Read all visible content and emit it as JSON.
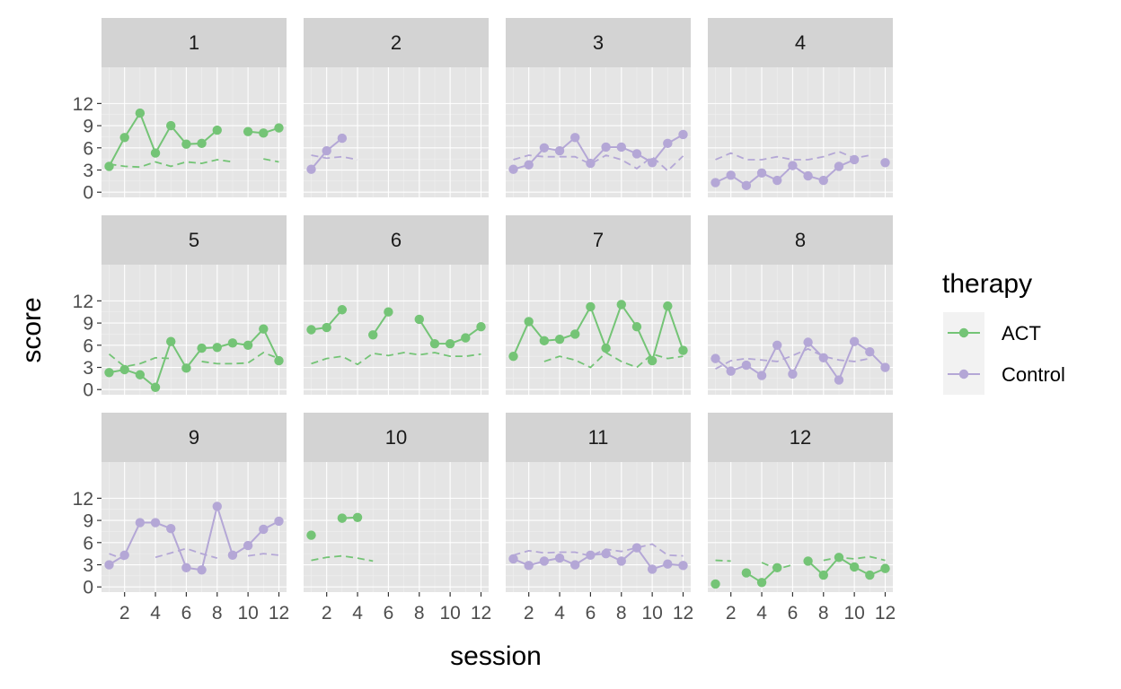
{
  "chart_data": {
    "type": "line",
    "facet_by": "participant",
    "xlabel": "session",
    "ylabel": "score",
    "legend": {
      "title": "therapy",
      "position": "right",
      "entries": [
        {
          "name": "ACT",
          "color": "#74c476"
        },
        {
          "name": "Control",
          "color": "#b4a7d6"
        }
      ]
    },
    "x_range": [
      1,
      12
    ],
    "x_ticks": [
      2,
      4,
      6,
      8,
      10,
      12
    ],
    "x_tick_labels": [
      "2",
      "4",
      "6",
      "8",
      "10",
      "12"
    ],
    "y_range": [
      0,
      12
    ],
    "y_ticks": [
      0,
      3,
      6,
      9,
      12
    ],
    "y_tick_labels": [
      "0",
      "3",
      "6",
      "9",
      "12"
    ],
    "grid": true,
    "series_styles": {
      "score": "solid line with points",
      "reference": "dashed line"
    },
    "facets": [
      {
        "label": "1",
        "therapy": "ACT",
        "score": [
          3.5,
          7.4,
          10.7,
          5.3,
          9.0,
          6.5,
          6.6,
          8.4,
          null,
          8.2,
          8.0,
          8.7
        ],
        "reference": [
          3.8,
          3.5,
          3.4,
          4.1,
          3.5,
          4.1,
          3.9,
          4.4,
          4.1,
          null,
          4.5,
          4.1
        ]
      },
      {
        "label": "2",
        "therapy": "Control",
        "score": [
          3.1,
          5.6,
          7.3,
          null,
          null,
          null,
          null,
          null,
          null,
          null,
          null,
          null
        ],
        "reference": [
          5.0,
          4.6,
          4.8,
          4.4,
          null,
          null,
          null,
          null,
          null,
          null,
          null,
          null
        ]
      },
      {
        "label": "3",
        "therapy": "Control",
        "score": [
          3.1,
          3.7,
          6.0,
          5.6,
          7.4,
          3.9,
          6.1,
          6.1,
          5.2,
          4.0,
          6.6,
          7.8
        ],
        "reference": [
          4.4,
          5.0,
          4.8,
          4.8,
          4.8,
          3.8,
          5.0,
          4.4,
          3.2,
          4.8,
          2.9,
          4.9
        ]
      },
      {
        "label": "4",
        "therapy": "Control",
        "score": [
          1.3,
          2.3,
          0.9,
          2.6,
          1.6,
          3.6,
          2.2,
          1.6,
          3.5,
          4.4,
          null,
          4.0
        ],
        "reference": [
          4.4,
          5.3,
          4.4,
          4.4,
          4.8,
          4.4,
          4.4,
          4.8,
          5.5,
          4.6,
          5.0,
          null
        ]
      },
      {
        "label": "5",
        "therapy": "ACT",
        "score": [
          2.3,
          2.7,
          2.0,
          0.3,
          6.5,
          2.9,
          5.6,
          5.7,
          6.3,
          6.0,
          8.2,
          3.9
        ],
        "reference": [
          4.8,
          3.1,
          3.5,
          4.3,
          4.2,
          null,
          3.8,
          3.5,
          3.5,
          3.6,
          5.0,
          4.2
        ]
      },
      {
        "label": "6",
        "therapy": "ACT",
        "score": [
          8.1,
          8.4,
          10.8,
          null,
          7.4,
          10.5,
          null,
          9.5,
          6.2,
          6.2,
          7.0,
          8.5
        ],
        "reference": [
          3.5,
          4.2,
          4.5,
          3.4,
          4.9,
          4.6,
          5.0,
          4.7,
          5.0,
          4.5,
          4.5,
          4.8
        ]
      },
      {
        "label": "7",
        "therapy": "ACT",
        "score": [
          4.5,
          9.2,
          6.6,
          6.8,
          7.5,
          11.2,
          5.6,
          11.5,
          8.5,
          3.9,
          11.3,
          5.3
        ],
        "reference": [
          null,
          null,
          3.8,
          4.5,
          4.0,
          3.0,
          5.0,
          3.8,
          3.0,
          4.8,
          4.2,
          4.5
        ]
      },
      {
        "label": "8",
        "therapy": "Control",
        "score": [
          4.2,
          2.5,
          3.3,
          1.9,
          6.0,
          2.1,
          6.4,
          4.3,
          1.3,
          6.5,
          5.1,
          3.0
        ],
        "reference": [
          2.8,
          3.9,
          4.2,
          4.0,
          3.8,
          4.6,
          5.5,
          4.5,
          4.0,
          3.8,
          4.2,
          null
        ]
      },
      {
        "label": "9",
        "therapy": "Control",
        "score": [
          3.0,
          4.3,
          8.7,
          8.7,
          7.9,
          2.6,
          2.3,
          10.9,
          4.3,
          5.6,
          7.8,
          8.9
        ],
        "reference": [
          4.5,
          3.7,
          null,
          4.0,
          4.6,
          5.2,
          4.5,
          3.9,
          null,
          4.2,
          4.5,
          4.3
        ]
      },
      {
        "label": "10",
        "therapy": "ACT",
        "score": [
          7.0,
          null,
          9.3,
          9.4,
          null,
          null,
          null,
          null,
          null,
          null,
          null,
          null
        ],
        "reference": [
          3.6,
          4.0,
          4.2,
          3.9,
          3.5,
          null,
          null,
          null,
          null,
          null,
          null,
          null
        ]
      },
      {
        "label": "11",
        "therapy": "Control",
        "score": [
          3.8,
          2.9,
          3.5,
          3.9,
          3.0,
          4.3,
          4.5,
          3.5,
          5.3,
          2.4,
          3.1,
          2.9
        ],
        "reference": [
          4.3,
          4.9,
          4.6,
          4.7,
          4.7,
          4.2,
          5.1,
          4.8,
          5.3,
          5.8,
          4.3,
          4.2
        ]
      },
      {
        "label": "12",
        "therapy": "ACT",
        "score": [
          0.4,
          null,
          1.9,
          0.6,
          2.6,
          null,
          3.5,
          1.6,
          4.0,
          2.7,
          1.6,
          2.5
        ],
        "reference": [
          3.6,
          3.5,
          null,
          3.3,
          2.4,
          3.0,
          null,
          3.6,
          4.0,
          3.8,
          4.1,
          3.6
        ]
      }
    ]
  }
}
